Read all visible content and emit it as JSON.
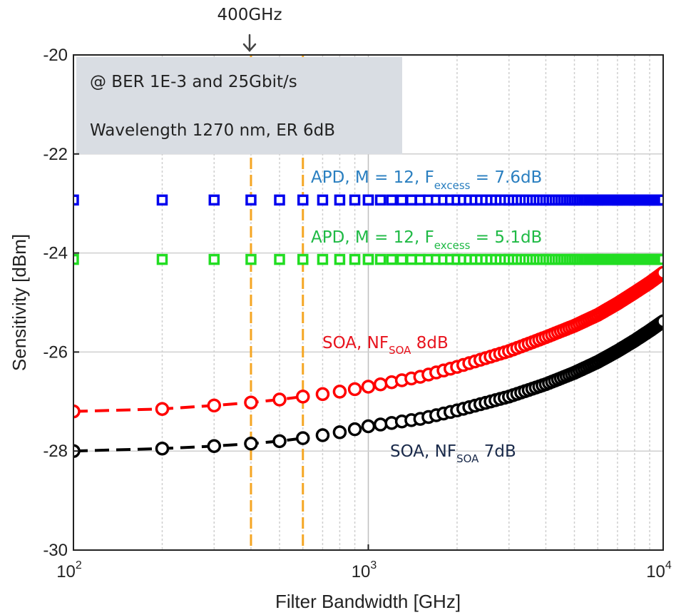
{
  "chart_data": {
    "type": "scatter",
    "xscale": "log",
    "xlim": [
      100,
      10000
    ],
    "ylim": [
      -30,
      -20
    ],
    "grid": true,
    "xlabel": "Filter Bandwidth [GHz]",
    "ylabel": "Sensitivity [dBm]",
    "y_ticks": [
      -30,
      -28,
      -26,
      -24,
      -22,
      -20
    ],
    "x_ticks": [
      {
        "value": 100,
        "base": "10",
        "exp": "2"
      },
      {
        "value": 1000,
        "base": "10",
        "exp": "3"
      },
      {
        "value": 10000,
        "base": "10",
        "exp": "4"
      }
    ],
    "info_box": {
      "line1": "@ BER 1E-3 and 25Gbit/s",
      "line2": "Wavelength 1270 nm, ER 6dB",
      "color": "#d9dde3"
    },
    "marker_annotation": {
      "label": "400GHz",
      "x": 400
    },
    "vlines": [
      400,
      600
    ],
    "vline_color": "#f5a623",
    "series": [
      {
        "key": "apd76",
        "label_main": "APD, M = 12, F",
        "label_sub": "excess",
        "label_tail": " = 7.6dB",
        "marker": "square",
        "color": "#0000ee",
        "label_color": "#2a7fc0",
        "constant_y": -22.93
      },
      {
        "key": "apd51",
        "label_main": "APD, M = 12, F",
        "label_sub": "excess",
        "label_tail": " = 5.1dB",
        "marker": "square",
        "color": "#22dd22",
        "label_color": "#1fba45",
        "constant_y": -24.13
      },
      {
        "key": "soa8",
        "label_main": "SOA, NF",
        "label_sub": "SOA",
        "label_tail": " 8dB",
        "marker": "circle",
        "color": "#ff0000",
        "label_color": "#e8141e",
        "dashed_upto": 600,
        "points": [
          [
            100,
            -27.2
          ],
          [
            200,
            -27.15
          ],
          [
            300,
            -27.08
          ],
          [
            400,
            -27.02
          ],
          [
            500,
            -26.96
          ],
          [
            600,
            -26.9
          ],
          [
            700,
            -26.85
          ],
          [
            800,
            -26.8
          ],
          [
            900,
            -26.75
          ],
          [
            1000,
            -26.7
          ],
          [
            1500,
            -26.5
          ],
          [
            2000,
            -26.3
          ],
          [
            3000,
            -25.98
          ],
          [
            4000,
            -25.7
          ],
          [
            5000,
            -25.47
          ],
          [
            6000,
            -25.25
          ],
          [
            7000,
            -25.02
          ],
          [
            8000,
            -24.8
          ],
          [
            9000,
            -24.6
          ],
          [
            10000,
            -24.4
          ]
        ]
      },
      {
        "key": "soa7",
        "label_main": "SOA, NF",
        "label_sub": "SOA",
        "label_tail": " 7dB",
        "marker": "circle",
        "color": "#000000",
        "label_color": "#1a2a4a",
        "dashed_upto": 600,
        "points": [
          [
            100,
            -28.0
          ],
          [
            200,
            -27.95
          ],
          [
            300,
            -27.9
          ],
          [
            400,
            -27.85
          ],
          [
            500,
            -27.8
          ],
          [
            600,
            -27.74
          ],
          [
            700,
            -27.68
          ],
          [
            800,
            -27.62
          ],
          [
            900,
            -27.56
          ],
          [
            1000,
            -27.5
          ],
          [
            1500,
            -27.35
          ],
          [
            2000,
            -27.18
          ],
          [
            3000,
            -26.9
          ],
          [
            4000,
            -26.65
          ],
          [
            5000,
            -26.42
          ],
          [
            6000,
            -26.2
          ],
          [
            7000,
            -25.98
          ],
          [
            8000,
            -25.77
          ],
          [
            9000,
            -25.57
          ],
          [
            10000,
            -25.38
          ]
        ]
      }
    ]
  }
}
